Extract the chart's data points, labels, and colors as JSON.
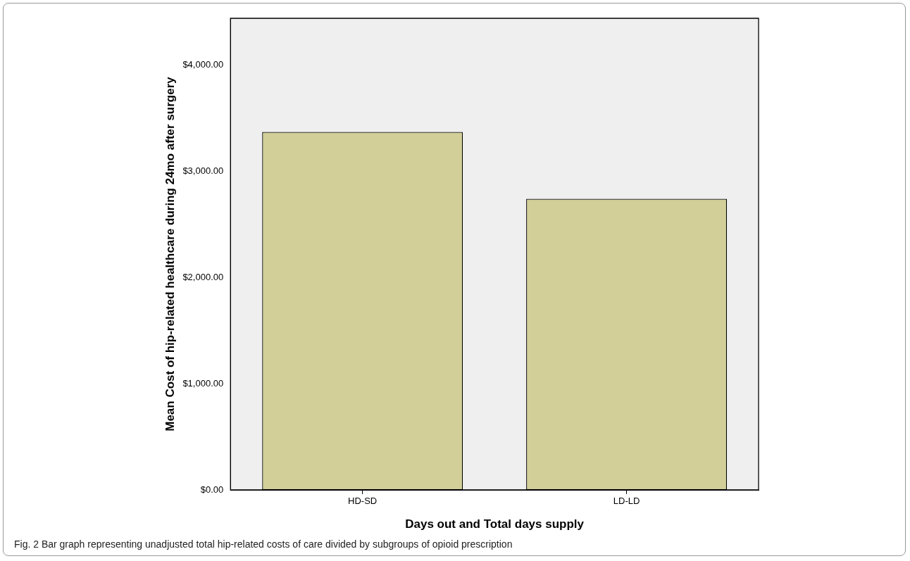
{
  "chart_data": {
    "type": "bar",
    "xlabel": "Days out and Total days supply",
    "ylabel": "Mean Cost of hip-related healthcare during 24mo after surgery",
    "categories": [
      "HD-SD",
      "LD-LD"
    ],
    "values": [
      3370,
      2740
    ],
    "color": "#d3cf98",
    "ylim": [
      0,
      4440
    ],
    "yticks": [
      {
        "value": 0,
        "label": "$0.00"
      },
      {
        "value": 1000,
        "label": "$1,000.00"
      },
      {
        "value": 2000,
        "label": "$2,000.00"
      },
      {
        "value": 3000,
        "label": "$3,000.00"
      },
      {
        "value": 4000,
        "label": "$4,000.00"
      }
    ],
    "grid": false,
    "legend": false,
    "annotations": [
      "Fig. 2 Bar graph representing unadjusted total hip-related costs of care divided by subgroups of opioid prescription"
    ]
  }
}
